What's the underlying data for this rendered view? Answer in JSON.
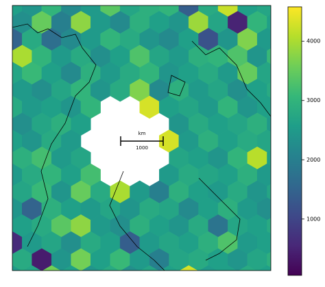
{
  "chart_data": {
    "type": "hexbin",
    "colormap": "viridis",
    "clim": [
      50,
      4580
    ],
    "cticks": [
      1000,
      2000,
      3000,
      4000
    ],
    "scale_bar": {
      "unit": "km",
      "length": 1000
    },
    "rows": [
      [
        2600,
        2400,
        3000,
        2200,
        2500,
        3400,
        2700,
        2900,
        3000,
        1400,
        2800,
        4200,
        2600,
        2700
      ],
      [
        2300,
        3500,
        2000,
        3800,
        2500,
        2200,
        2900,
        2600,
        2400,
        3900,
        2700,
        500,
        3000,
        2600
      ],
      [
        1500,
        2800,
        1700,
        2200,
        2500,
        3000,
        2800,
        2400,
        2200,
        2600,
        1200,
        2400,
        3700,
        2500
      ],
      [
        4000,
        3000,
        2500,
        2800,
        2300,
        2600,
        3300,
        2700,
        2500,
        2900,
        3000,
        3300,
        2400,
        3100
      ],
      [
        2700,
        3100,
        2600,
        2200,
        2900,
        2500,
        2800,
        3000,
        2400,
        2600,
        2800,
        2500,
        3500,
        2700
      ],
      [
        2500,
        2300,
        2700,
        3000,
        2400,
        2800,
        3700,
        2200,
        2900,
        2500,
        2700,
        2300,
        2600,
        2800
      ],
      [
        2800,
        2500,
        2600,
        2400,
        3000,
        null,
        null,
        4300,
        2600,
        2700,
        2500,
        3000,
        2400,
        2600
      ],
      [
        2300,
        2700,
        2900,
        2600,
        null,
        null,
        null,
        null,
        2400,
        2800,
        2600,
        2700,
        2900,
        2500
      ],
      [
        2600,
        2400,
        2800,
        2500,
        null,
        null,
        null,
        null,
        4300,
        2500,
        2900,
        2600,
        2800,
        2700
      ],
      [
        2900,
        3200,
        2500,
        2700,
        null,
        null,
        null,
        null,
        2700,
        2600,
        2400,
        3000,
        4100,
        2600
      ],
      [
        2500,
        2800,
        3000,
        2600,
        3200,
        null,
        null,
        null,
        2500,
        2800,
        2700,
        2600,
        2900,
        2500
      ],
      [
        2700,
        3100,
        2400,
        3500,
        2800,
        4000,
        2500,
        2000,
        2900,
        2600,
        2500,
        2800,
        2400,
        2700
      ],
      [
        2400,
        1500,
        2900,
        2600,
        2500,
        2700,
        2400,
        2800,
        2700,
        2200,
        2600,
        2900,
        2500,
        2300
      ],
      [
        2600,
        2800,
        3400,
        3800,
        2500,
        2300,
        2900,
        2600,
        2400,
        2800,
        1800,
        2700,
        2600,
        2800
      ],
      [
        600,
        2500,
        2700,
        2300,
        2800,
        2600,
        1400,
        2500,
        2700,
        2600,
        2900,
        3300,
        2500,
        2600
      ],
      [
        2800,
        400,
        2400,
        3600,
        2600,
        3100,
        2500,
        2000,
        2700,
        2800,
        2600,
        2400,
        2700,
        2900
      ],
      [
        2500,
        2700,
        3600,
        2600,
        2400,
        2800,
        2300,
        2700,
        2600,
        4300,
        2500,
        2600,
        2800,
        2600
      ]
    ]
  }
}
